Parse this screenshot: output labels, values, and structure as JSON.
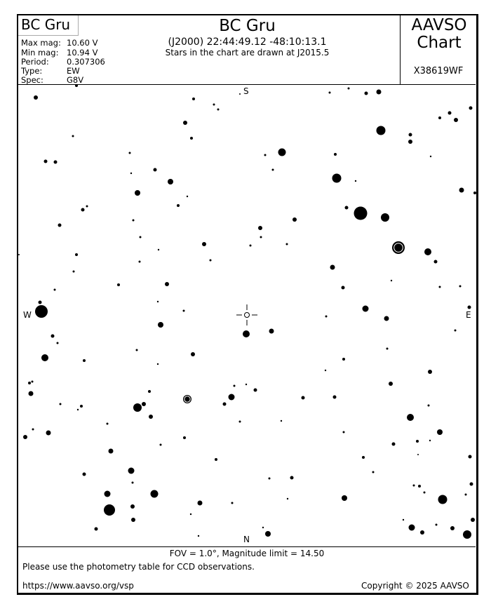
{
  "header": {
    "star_name": "BC Gru",
    "title": "BC Gru",
    "coords": "(J2000) 22:44:49.12 -48:10:13.1",
    "epoch_note": "Stars in the chart are drawn at J2015.5",
    "brand_line1": "AAVSO",
    "brand_line2": "Chart",
    "chart_id": "X38619WF"
  },
  "info": [
    {
      "label": "Max mag:",
      "value": "10.60 V"
    },
    {
      "label": "Min mag:",
      "value": "10.94 V"
    },
    {
      "label": "Period:",
      "value": "0.307306"
    },
    {
      "label": "Type:",
      "value": "EW"
    },
    {
      "label": "Spec:",
      "value": "G8V"
    }
  ],
  "directions": {
    "north": "N",
    "south": "S",
    "east": "E",
    "west": "W"
  },
  "footer": {
    "fov": "FOV = 1.0°, Magnitude limit = 14.50",
    "note": "Please use the photometry table for CCD observations.",
    "url": "https://www.aavso.org/vsp",
    "copyright": "Copyright © 2025 AAVSO"
  }
}
